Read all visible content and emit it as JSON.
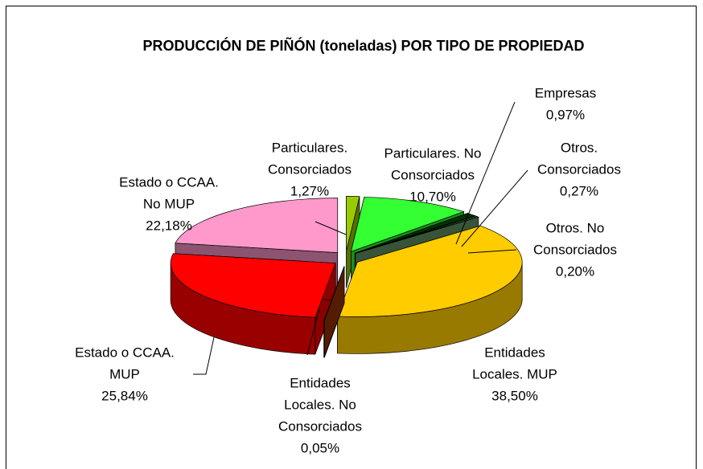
{
  "chart_data": {
    "type": "pie3d",
    "title": "PRODUCCIÓN DE PIÑÓN (toneladas) POR TIPO DE PROPIEDAD",
    "categories": [
      [
        "Particulares.",
        "Consorciados"
      ],
      [
        "Particulares. No",
        "Consorciados"
      ],
      [
        "Empresas"
      ],
      [
        "Otros.",
        "Consorciados"
      ],
      [
        "Otros. No",
        "Consorciados"
      ],
      [
        "Entidades",
        "Locales. MUP"
      ],
      [
        "Entidades",
        "Locales. No",
        "Consorciados"
      ],
      [
        "Estado o CCAA.",
        "MUP"
      ],
      [
        "Estado o  CCAA.",
        "No MUP"
      ]
    ],
    "values": [
      1.27,
      10.7,
      0.97,
      0.27,
      0.2,
      38.5,
      0.05,
      25.84,
      22.18
    ],
    "value_labels": [
      "1,27%",
      "10,70%",
      "0,97%",
      "0,27%",
      "0,20%",
      "38,50%",
      "0,05%",
      "25,84%",
      "22,18%"
    ],
    "colors": [
      "#99cc00",
      "#33ff33",
      "#003300",
      "#336633",
      "#669966",
      "#ffcc00",
      "#993300",
      "#ff0000",
      "#ff99cc"
    ]
  }
}
